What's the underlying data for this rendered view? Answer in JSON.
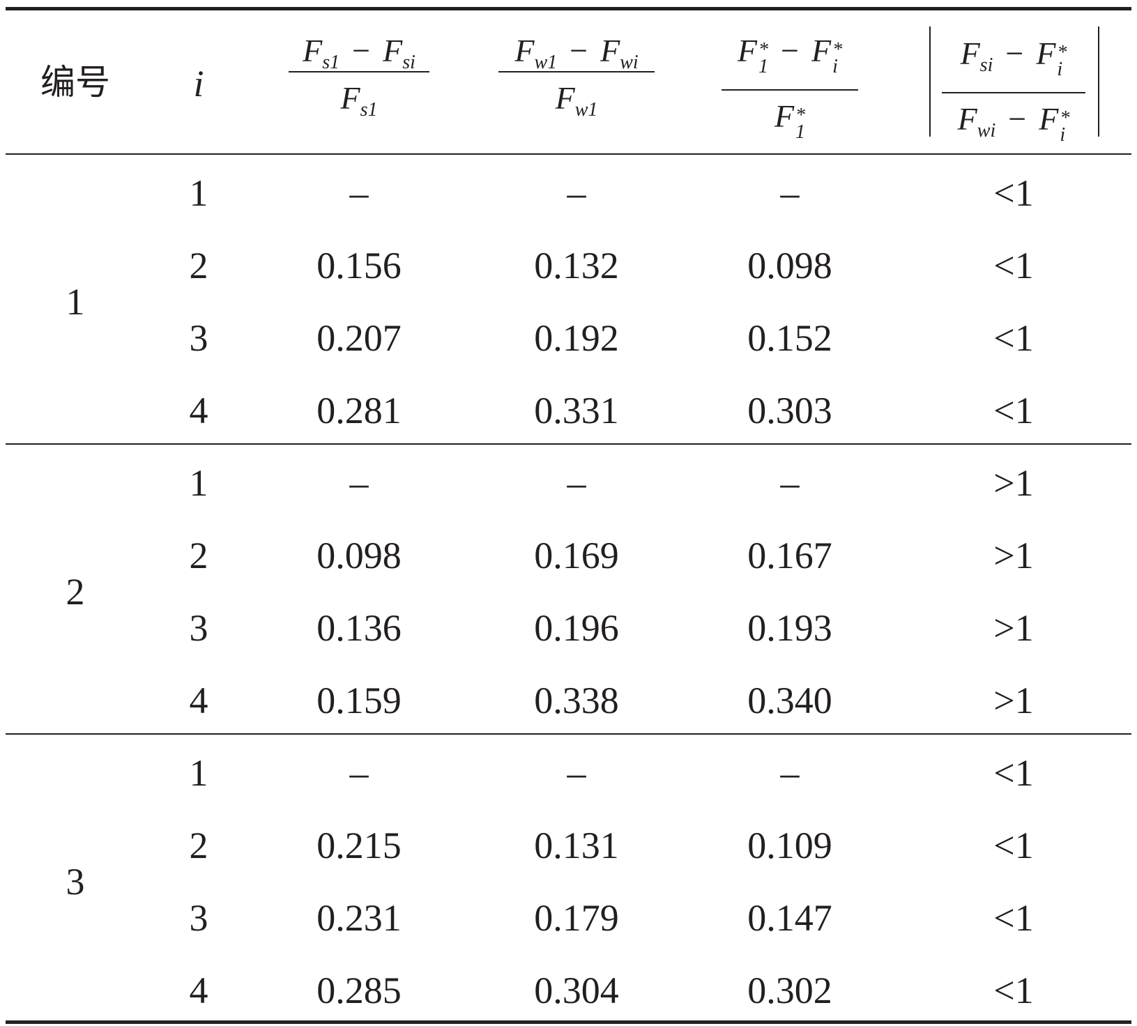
{
  "table": {
    "header": {
      "col_id": "编号",
      "col_i": "i",
      "col_fs": {
        "num_a": "F",
        "num_a_sub": "s1",
        "minus": "−",
        "num_b": "F",
        "num_b_sub": "si",
        "den": "F",
        "den_sub": "s1"
      },
      "col_fw": {
        "num_a": "F",
        "num_a_sub": "w1",
        "minus": "−",
        "num_b": "F",
        "num_b_sub": "wi",
        "den": "F",
        "den_sub": "w1"
      },
      "col_fstar": {
        "num_a": "F",
        "num_a_sub": "1",
        "num_a_sup": "*",
        "minus": "−",
        "num_b": "F",
        "num_b_sub": "i",
        "num_b_sup": "*",
        "den": "F",
        "den_sub": "1",
        "den_sup": "*"
      },
      "col_ratio": {
        "num_a": "F",
        "num_a_sub": "si",
        "minus": "−",
        "num_b": "F",
        "num_b_sub": "i",
        "num_b_sup": "*",
        "den_a": "F",
        "den_a_sub": "wi",
        "den_b": "F",
        "den_b_sub": "i",
        "den_b_sup": "*"
      }
    },
    "groups": [
      {
        "id": "1",
        "rows": [
          {
            "i": "1",
            "fs": "–",
            "fw": "–",
            "fstar": "–",
            "ratio": "<1"
          },
          {
            "i": "2",
            "fs": "0.156",
            "fw": "0.132",
            "fstar": "0.098",
            "ratio": "<1"
          },
          {
            "i": "3",
            "fs": "0.207",
            "fw": "0.192",
            "fstar": "0.152",
            "ratio": "<1"
          },
          {
            "i": "4",
            "fs": "0.281",
            "fw": "0.331",
            "fstar": "0.303",
            "ratio": "<1"
          }
        ]
      },
      {
        "id": "2",
        "rows": [
          {
            "i": "1",
            "fs": "–",
            "fw": "–",
            "fstar": "–",
            "ratio": ">1"
          },
          {
            "i": "2",
            "fs": "0.098",
            "fw": "0.169",
            "fstar": "0.167",
            "ratio": ">1"
          },
          {
            "i": "3",
            "fs": "0.136",
            "fw": "0.196",
            "fstar": "0.193",
            "ratio": ">1"
          },
          {
            "i": "4",
            "fs": "0.159",
            "fw": "0.338",
            "fstar": "0.340",
            "ratio": ">1"
          }
        ]
      },
      {
        "id": "3",
        "rows": [
          {
            "i": "1",
            "fs": "–",
            "fw": "–",
            "fstar": "–",
            "ratio": "<1"
          },
          {
            "i": "2",
            "fs": "0.215",
            "fw": "0.131",
            "fstar": "0.109",
            "ratio": "<1"
          },
          {
            "i": "3",
            "fs": "0.231",
            "fw": "0.179",
            "fstar": "0.147",
            "ratio": "<1"
          },
          {
            "i": "4",
            "fs": "0.285",
            "fw": "0.304",
            "fstar": "0.302",
            "ratio": "<1"
          }
        ]
      }
    ]
  }
}
